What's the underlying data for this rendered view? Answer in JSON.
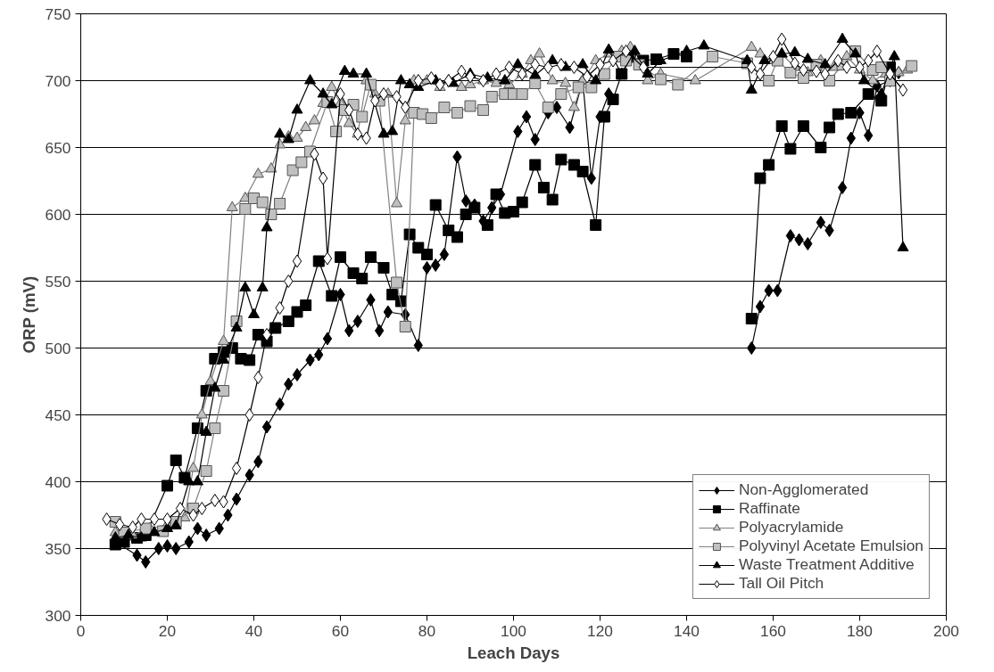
{
  "chart_data": {
    "type": "line",
    "xlabel": "Leach Days",
    "ylabel": "ORP (mV)",
    "xlim": [
      0,
      200
    ],
    "ylim": [
      300,
      750
    ],
    "xticks": [
      0,
      20,
      40,
      60,
      80,
      100,
      120,
      140,
      160,
      180,
      200
    ],
    "yticks": [
      300,
      350,
      400,
      450,
      500,
      550,
      600,
      650,
      700,
      750
    ],
    "grid": "y",
    "legend": "bottom right",
    "series": [
      {
        "name": "Non-Agglomerated",
        "color": "#000000",
        "marker": "diamond",
        "x": [
          8,
          13,
          15,
          18,
          20,
          22,
          25,
          27,
          29,
          32,
          34,
          36,
          39,
          41,
          43,
          46,
          48,
          50,
          53,
          55,
          57,
          60,
          62,
          64,
          67,
          69,
          71,
          75,
          78,
          80,
          82,
          84,
          87,
          89,
          91,
          93,
          95,
          97,
          101,
          103,
          105,
          108,
          110,
          113,
          116,
          118,
          120,
          122,
          150,
          155,
          157,
          159,
          161,
          164,
          166,
          168,
          171,
          173,
          176,
          178,
          180,
          182,
          184,
          187,
          189
        ],
        "values": [
          355,
          345,
          340,
          350,
          352,
          350,
          355,
          365,
          360,
          365,
          375,
          387,
          405,
          415,
          441,
          458,
          473,
          480,
          491,
          495,
          507,
          540,
          513,
          520,
          536,
          513,
          527,
          525,
          502,
          560,
          562,
          570,
          643,
          610,
          607,
          595,
          605,
          615,
          662,
          673,
          656,
          676,
          680,
          665,
          700,
          627,
          673,
          690,
          null,
          500,
          531,
          543,
          543,
          584,
          581,
          578,
          594,
          588,
          620,
          657,
          676,
          659,
          696,
          700,
          706
        ]
      },
      {
        "name": "Raffinate",
        "color": "#000000",
        "marker": "square",
        "x": [
          8,
          10,
          13,
          15,
          20,
          22,
          24,
          27,
          29,
          31,
          33,
          35,
          37,
          39,
          41,
          43,
          45,
          48,
          50,
          52,
          55,
          58,
          60,
          63,
          65,
          67,
          70,
          72,
          74,
          76,
          78,
          80,
          82,
          85,
          87,
          89,
          91,
          94,
          96,
          98,
          100,
          102,
          105,
          107,
          109,
          111,
          114,
          116,
          119,
          121,
          123,
          125,
          127,
          130,
          133,
          137,
          140,
          150,
          155,
          157,
          159,
          162,
          164,
          167,
          171,
          173,
          175,
          178,
          182,
          185,
          187
        ],
        "values": [
          353,
          355,
          358,
          360,
          397,
          416,
          403,
          440,
          468,
          492,
          497,
          500,
          492,
          491,
          510,
          505,
          515,
          520,
          527,
          532,
          565,
          539,
          568,
          556,
          552,
          568,
          560,
          540,
          535,
          585,
          575,
          570,
          607,
          588,
          583,
          600,
          605,
          592,
          615,
          601,
          602,
          609,
          637,
          620,
          611,
          641,
          637,
          632,
          592,
          673,
          686,
          705,
          718,
          715,
          716,
          720,
          718,
          null,
          522,
          627,
          637,
          666,
          649,
          666,
          650,
          665,
          675,
          676,
          690,
          685,
          710
        ]
      },
      {
        "name": "Polyacrylamide",
        "color": "#c0c0c0",
        "marker": "triangle",
        "x": [
          8,
          12,
          16,
          20,
          24,
          26,
          28,
          30,
          33,
          35,
          38,
          41,
          44,
          46,
          48,
          50,
          52,
          54,
          56,
          58,
          60,
          62,
          64,
          66,
          68,
          71,
          73,
          75,
          77,
          80,
          83,
          85,
          88,
          90,
          93,
          96,
          99,
          102,
          104,
          106,
          109,
          112,
          114,
          116,
          119,
          122,
          125,
          127,
          131,
          134,
          142,
          155,
          157,
          160,
          162,
          165,
          168,
          171,
          174,
          177,
          180,
          183,
          186,
          189,
          191
        ],
        "values": [
          362,
          360,
          365,
          368,
          373,
          410,
          450,
          475,
          505,
          605,
          612,
          630,
          634,
          652,
          658,
          657,
          665,
          670,
          683,
          695,
          683,
          668,
          660,
          700,
          690,
          690,
          608,
          670,
          700,
          700,
          695,
          700,
          695,
          697,
          700,
          698,
          697,
          705,
          715,
          720,
          700,
          698,
          680,
          700,
          715,
          720,
          722,
          725,
          700,
          705,
          700,
          725,
          720,
          715,
          720,
          710,
          706,
          715,
          710,
          718,
          708,
          700,
          705,
          706,
          708
        ]
      },
      {
        "name": "Polyvinyl Acetate Emulsion",
        "color": "#c0c0c0",
        "marker": "square",
        "x": [
          8,
          10,
          15,
          19,
          22,
          26,
          29,
          31,
          33,
          36,
          38,
          40,
          42,
          44,
          46,
          49,
          51,
          53,
          57,
          59,
          61,
          63,
          65,
          67,
          69,
          73,
          75,
          77,
          79,
          81,
          84,
          87,
          90,
          93,
          95,
          98,
          100,
          102,
          105,
          108,
          111,
          115,
          118,
          121,
          124,
          126,
          129,
          134,
          138,
          146,
          154,
          159,
          161,
          164,
          167,
          170,
          173,
          176,
          179,
          183,
          185,
          187,
          192
        ],
        "values": [
          370,
          362,
          365,
          363,
          370,
          380,
          408,
          440,
          468,
          520,
          604,
          612,
          609,
          600,
          608,
          633,
          639,
          647,
          684,
          662,
          678,
          682,
          673,
          697,
          685,
          549,
          516,
          676,
          675,
          672,
          680,
          676,
          681,
          678,
          688,
          690,
          690,
          690,
          698,
          680,
          690,
          695,
          695,
          705,
          718,
          715,
          712,
          701,
          697,
          718,
          713,
          700,
          715,
          706,
          702,
          712,
          700,
          712,
          722,
          708,
          710,
          700,
          711
        ]
      },
      {
        "name": "Waste Treatment Additive",
        "color": "#000000",
        "marker": "triangle",
        "x": [
          8,
          11,
          14,
          17,
          20,
          22,
          25,
          27,
          29,
          31,
          33,
          36,
          38,
          40,
          42,
          43,
          46,
          48,
          50,
          53,
          56,
          58,
          61,
          63,
          66,
          70,
          72,
          74,
          76,
          78,
          82,
          86,
          90,
          94,
          98,
          101,
          105,
          109,
          112,
          116,
          119,
          122,
          125,
          128,
          131,
          134,
          140,
          144,
          154,
          155,
          158,
          162,
          165,
          168,
          172,
          176,
          179,
          181,
          185,
          188,
          190
        ],
        "values": [
          358,
          360,
          358,
          362,
          365,
          367,
          400,
          400,
          437,
          470,
          491,
          515,
          545,
          525,
          545,
          590,
          660,
          656,
          678,
          700,
          690,
          682,
          707,
          705,
          705,
          660,
          662,
          700,
          697,
          695,
          700,
          698,
          705,
          702,
          700,
          712,
          704,
          715,
          710,
          712,
          700,
          723,
          705,
          722,
          705,
          715,
          722,
          726,
          715,
          693,
          715,
          720,
          721,
          716,
          712,
          731,
          720,
          700,
          690,
          718,
          575
        ]
      },
      {
        "name": "Tall Oil Pitch",
        "color": "#ffffff",
        "marker": "diamond",
        "x": [
          6,
          9,
          12,
          14,
          17,
          20,
          23,
          26,
          28,
          31,
          33,
          36,
          39,
          41,
          43,
          46,
          48,
          50,
          54,
          56,
          57,
          60,
          62,
          64,
          66,
          68,
          70,
          73,
          75,
          78,
          81,
          83,
          85,
          88,
          90,
          93,
          96,
          99,
          102,
          105,
          108,
          111,
          114,
          117,
          120,
          123,
          126,
          130,
          155,
          157,
          160,
          162,
          165,
          167,
          170,
          172,
          175,
          177,
          180,
          182,
          184,
          187,
          190
        ],
        "values": [
          372,
          368,
          366,
          372,
          372,
          372,
          380,
          375,
          380,
          386,
          385,
          410,
          450,
          478,
          510,
          530,
          550,
          565,
          645,
          627,
          567,
          690,
          678,
          660,
          657,
          685,
          690,
          688,
          680,
          700,
          702,
          697,
          700,
          707,
          703,
          700,
          705,
          710,
          705,
          712,
          710,
          712,
          710,
          703,
          712,
          715,
          722,
          710,
          710,
          705,
          718,
          731,
          713,
          708,
          707,
          705,
          715,
          710,
          710,
          715,
          722,
          705,
          693
        ]
      }
    ]
  }
}
